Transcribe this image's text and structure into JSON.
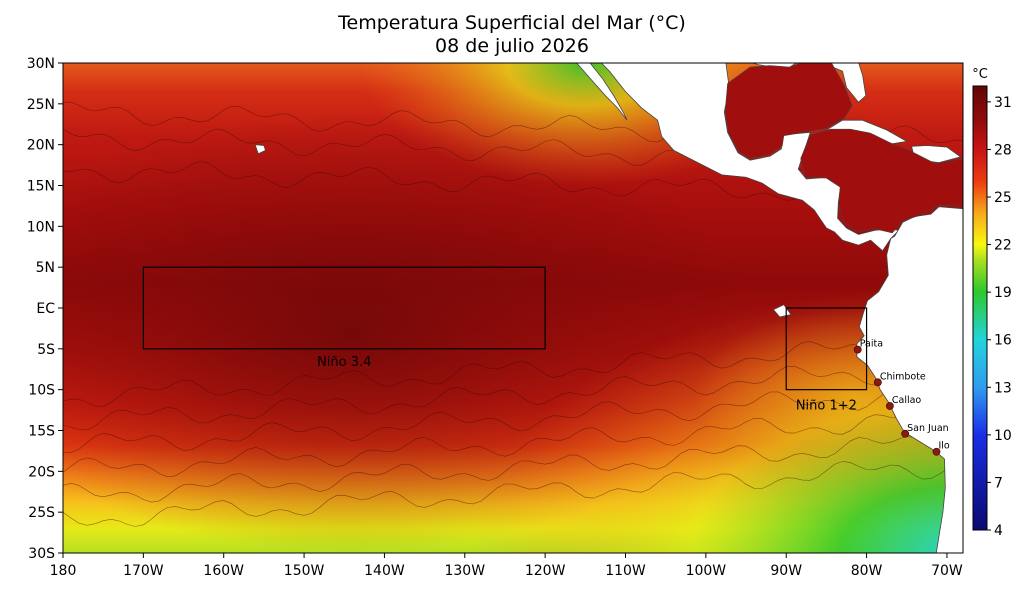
{
  "title": {
    "line1": "Temperatura Superficial del Mar (°C)",
    "line2": "08 de julio 2026"
  },
  "map": {
    "lon_range": [
      -180,
      -68
    ],
    "lat_range": [
      -30,
      30
    ],
    "lon_ticks": [
      {
        "value": -180,
        "label": "180"
      },
      {
        "value": -170,
        "label": "170W"
      },
      {
        "value": -160,
        "label": "160W"
      },
      {
        "value": -150,
        "label": "150W"
      },
      {
        "value": -140,
        "label": "140W"
      },
      {
        "value": -130,
        "label": "130W"
      },
      {
        "value": -120,
        "label": "120W"
      },
      {
        "value": -110,
        "label": "110W"
      },
      {
        "value": -100,
        "label": "100W"
      },
      {
        "value": -90,
        "label": "90W"
      },
      {
        "value": -80,
        "label": "80W"
      },
      {
        "value": -70,
        "label": "70W"
      }
    ],
    "lat_ticks": [
      {
        "value": 30,
        "label": "30N"
      },
      {
        "value": 25,
        "label": "25N"
      },
      {
        "value": 20,
        "label": "20N"
      },
      {
        "value": 15,
        "label": "15N"
      },
      {
        "value": 10,
        "label": "10N"
      },
      {
        "value": 5,
        "label": "5N"
      },
      {
        "value": 0,
        "label": "EC"
      },
      {
        "value": -5,
        "label": "5S"
      },
      {
        "value": -10,
        "label": "10S"
      },
      {
        "value": -15,
        "label": "15S"
      },
      {
        "value": -20,
        "label": "20S"
      },
      {
        "value": -25,
        "label": "25S"
      },
      {
        "value": -30,
        "label": "30S"
      }
    ],
    "regions": [
      {
        "name": "Niño 3.4",
        "lon": [
          -170,
          -120
        ],
        "lat": [
          -5,
          5
        ]
      },
      {
        "name": "Niño 1+2",
        "lon": [
          -90,
          -80
        ],
        "lat": [
          -10,
          0
        ]
      }
    ],
    "ports": [
      {
        "name": "Paita",
        "lon": -81.1,
        "lat": -5.1
      },
      {
        "name": "Chimbote",
        "lon": -78.6,
        "lat": -9.1
      },
      {
        "name": "Callao",
        "lon": -77.1,
        "lat": -12.0
      },
      {
        "name": "San Juan",
        "lon": -75.2,
        "lat": -15.4
      },
      {
        "name": "Ilo",
        "lon": -71.3,
        "lat": -17.6
      }
    ],
    "colors": {
      "land": "#ffffff",
      "region_box": "#000000",
      "port_marker": "#8b1a10"
    }
  },
  "colorbar": {
    "unit": "°C",
    "ticks": [
      31,
      28,
      25,
      22,
      19,
      16,
      13,
      10,
      7,
      4
    ],
    "range": [
      4,
      32
    ],
    "stops": [
      {
        "value": 4,
        "color": "#0a0a70"
      },
      {
        "value": 10,
        "color": "#1a2ee6"
      },
      {
        "value": 13,
        "color": "#2f9cf0"
      },
      {
        "value": 16,
        "color": "#22d4dc"
      },
      {
        "value": 19,
        "color": "#2ec82e"
      },
      {
        "value": 21,
        "color": "#a8e01e"
      },
      {
        "value": 22,
        "color": "#f8f810"
      },
      {
        "value": 24,
        "color": "#f8a81c"
      },
      {
        "value": 26,
        "color": "#ec3a10"
      },
      {
        "value": 28,
        "color": "#c81414"
      },
      {
        "value": 30,
        "color": "#8e0a0a"
      },
      {
        "value": 32,
        "color": "#600606"
      }
    ]
  }
}
